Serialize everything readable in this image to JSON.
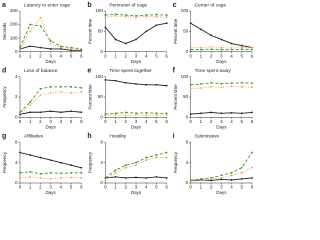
{
  "chart_data": [
    {
      "type": "line",
      "label": "a",
      "title": "Latency to enter cage",
      "x_label": "Days",
      "y_label": "Seconds",
      "x": [
        0,
        1,
        2,
        3,
        4,
        5,
        6
      ],
      "xlim": [
        0,
        6
      ],
      "xticks": [
        0,
        1,
        2,
        3,
        4,
        5,
        6
      ],
      "ylim": [
        0,
        300
      ],
      "yticks": [
        0,
        100,
        200,
        300
      ],
      "series": [
        {
          "color": "#222222",
          "dash": "none",
          "values": [
            20,
            40,
            30,
            20,
            20,
            10,
            10
          ]
        },
        {
          "color": "#3a9a2a",
          "dash": "3 2",
          "values": [
            30,
            200,
            190,
            80,
            40,
            30,
            20
          ]
        },
        {
          "color": "#f0a040",
          "dash": "1 1.5",
          "values": [
            20,
            150,
            250,
            60,
            30,
            20,
            20
          ]
        }
      ]
    },
    {
      "type": "line",
      "label": "b",
      "title": "Perimeter of cage",
      "x_label": "Days",
      "y_label": "Percent time",
      "x": [
        0,
        1,
        2,
        3,
        4,
        5,
        6
      ],
      "xlim": [
        0,
        6
      ],
      "xticks": [
        0,
        1,
        2,
        3,
        4,
        5,
        6
      ],
      "ylim": [
        0,
        100
      ],
      "yticks": [
        0,
        50,
        100
      ],
      "series": [
        {
          "color": "#222222",
          "dash": "none",
          "values": [
            60,
            30,
            20,
            30,
            50,
            65,
            70
          ]
        },
        {
          "color": "#3a9a2a",
          "dash": "3 2",
          "values": [
            90,
            92,
            90,
            88,
            90,
            91,
            90
          ]
        },
        {
          "color": "#f0a040",
          "dash": "1 1.5",
          "values": [
            85,
            88,
            86,
            85,
            87,
            86,
            85
          ]
        }
      ]
    },
    {
      "type": "line",
      "label": "c",
      "title": "Center of cage",
      "x_label": "Days",
      "y_label": "Percent time",
      "x": [
        0,
        1,
        2,
        3,
        4,
        5,
        6
      ],
      "xlim": [
        0,
        6
      ],
      "xticks": [
        0,
        1,
        2,
        3,
        4,
        5,
        6
      ],
      "ylim": [
        0,
        100
      ],
      "yticks": [
        0,
        50,
        100
      ],
      "series": [
        {
          "color": "#222222",
          "dash": "none",
          "values": [
            70,
            55,
            40,
            30,
            20,
            15,
            10
          ]
        },
        {
          "color": "#3a9a2a",
          "dash": "3 2",
          "values": [
            5,
            5,
            6,
            5,
            5,
            6,
            5
          ]
        },
        {
          "color": "#f0a040",
          "dash": "1 1.5",
          "values": [
            10,
            10,
            12,
            10,
            9,
            10,
            10
          ]
        }
      ]
    },
    {
      "type": "line",
      "label": "d",
      "title": "Loss of balance",
      "x_label": "Days",
      "y_label": "Frequency",
      "x": [
        0,
        1,
        2,
        3,
        4,
        5,
        6
      ],
      "xlim": [
        0,
        6
      ],
      "xticks": [
        0,
        1,
        2,
        3,
        4,
        5,
        6
      ],
      "ylim": [
        0,
        4
      ],
      "yticks": [
        0,
        2,
        4
      ],
      "series": [
        {
          "color": "#222222",
          "dash": "none",
          "values": [
            0.3,
            0.5,
            0.5,
            0.6,
            0.5,
            0.6,
            0.5
          ]
        },
        {
          "color": "#3a9a2a",
          "dash": "3 2",
          "values": [
            0.5,
            1.5,
            2.8,
            3,
            3,
            3,
            2.9
          ]
        },
        {
          "color": "#f0a040",
          "dash": "1 1.5",
          "values": [
            0.4,
            1.2,
            2.2,
            2.4,
            2.5,
            2.4,
            2.5
          ]
        }
      ]
    },
    {
      "type": "line",
      "label": "e",
      "title": "Time spent together",
      "x_label": "Days",
      "y_label": "Percent time",
      "x": [
        0,
        1,
        2,
        3,
        4,
        5,
        6
      ],
      "xlim": [
        0,
        6
      ],
      "xticks": [
        0,
        1,
        2,
        3,
        4,
        5,
        6
      ],
      "ylim": [
        0,
        100
      ],
      "yticks": [
        0,
        50,
        100
      ],
      "series": [
        {
          "color": "#222222",
          "dash": "none",
          "values": [
            92,
            90,
            85,
            82,
            80,
            80,
            78
          ]
        },
        {
          "color": "#3a9a2a",
          "dash": "3 2",
          "values": [
            8,
            10,
            12,
            10,
            11,
            10,
            10
          ]
        },
        {
          "color": "#f0a040",
          "dash": "1 1.5",
          "values": [
            5,
            6,
            5,
            6,
            5,
            5,
            6
          ]
        }
      ]
    },
    {
      "type": "line",
      "label": "f",
      "title": "Time spent away",
      "x_label": "Days",
      "y_label": "Percent time",
      "x": [
        0,
        1,
        2,
        3,
        4,
        5,
        6
      ],
      "xlim": [
        0,
        6
      ],
      "xticks": [
        0,
        1,
        2,
        3,
        4,
        5,
        6
      ],
      "ylim": [
        0,
        100
      ],
      "yticks": [
        0,
        50,
        100
      ],
      "series": [
        {
          "color": "#222222",
          "dash": "none",
          "values": [
            8,
            10,
            12,
            10,
            11,
            10,
            12
          ]
        },
        {
          "color": "#3a9a2a",
          "dash": "3 2",
          "values": [
            80,
            82,
            85,
            83,
            84,
            85,
            84
          ]
        },
        {
          "color": "#f0a040",
          "dash": "1 1.5",
          "values": [
            70,
            72,
            75,
            74,
            76,
            75,
            74
          ]
        }
      ]
    },
    {
      "type": "line",
      "label": "g",
      "title": "Affiliative",
      "x_label": "Days",
      "y_label": "Frequency",
      "x": [
        0,
        1,
        2,
        3,
        4,
        5,
        6
      ],
      "xlim": [
        0,
        6
      ],
      "xticks": [
        0,
        1,
        2,
        3,
        4,
        5,
        6
      ],
      "ylim": [
        0,
        8
      ],
      "yticks": [
        0,
        4,
        8
      ],
      "series": [
        {
          "color": "#222222",
          "dash": "none",
          "values": [
            6,
            5.5,
            5,
            4.5,
            4,
            3.5,
            3
          ]
        },
        {
          "color": "#3a9a2a",
          "dash": "3 2",
          "values": [
            2,
            2.2,
            1.8,
            2,
            1.9,
            2,
            2
          ]
        },
        {
          "color": "#f0a040",
          "dash": "1 1.5",
          "values": [
            1,
            1.2,
            1,
            0.8,
            1,
            1.1,
            1
          ]
        }
      ]
    },
    {
      "type": "line",
      "label": "h",
      "title": "Hostility",
      "x_label": "Days",
      "y_label": "Frequency",
      "x": [
        0,
        1,
        2,
        3,
        4,
        5,
        6
      ],
      "xlim": [
        0,
        6
      ],
      "xticks": [
        0,
        1,
        2,
        3,
        4,
        5,
        6
      ],
      "ylim": [
        0,
        8
      ],
      "yticks": [
        0,
        4,
        8
      ],
      "series": [
        {
          "color": "#222222",
          "dash": "none",
          "values": [
            1,
            1.2,
            1,
            1.1,
            1,
            1.2,
            1
          ]
        },
        {
          "color": "#3a9a2a",
          "dash": "3 2",
          "values": [
            1,
            2.5,
            3.5,
            4,
            5,
            5.5,
            6
          ]
        },
        {
          "color": "#f0a040",
          "dash": "1 1.5",
          "values": [
            0.5,
            2,
            3,
            3.5,
            4.5,
            5,
            5
          ]
        }
      ]
    },
    {
      "type": "line",
      "label": "i",
      "title": "Submissive",
      "x_label": "Days",
      "y_label": "Frequency",
      "x": [
        0,
        1,
        2,
        3,
        4,
        5,
        6
      ],
      "xlim": [
        0,
        6
      ],
      "xticks": [
        0,
        1,
        2,
        3,
        4,
        5,
        6
      ],
      "ylim": [
        0,
        8
      ],
      "yticks": [
        0,
        4,
        8
      ],
      "series": [
        {
          "color": "#222222",
          "dash": "none",
          "values": [
            0.5,
            0.6,
            0.5,
            0.7,
            0.6,
            0.8,
            1
          ]
        },
        {
          "color": "#3a9a2a",
          "dash": "3 2",
          "values": [
            0.5,
            0.8,
            1,
            1.5,
            2,
            3,
            6
          ]
        },
        {
          "color": "#f0a040",
          "dash": "1 1.5",
          "values": [
            0.3,
            0.5,
            0.8,
            1,
            1.5,
            2,
            3
          ]
        }
      ]
    }
  ]
}
